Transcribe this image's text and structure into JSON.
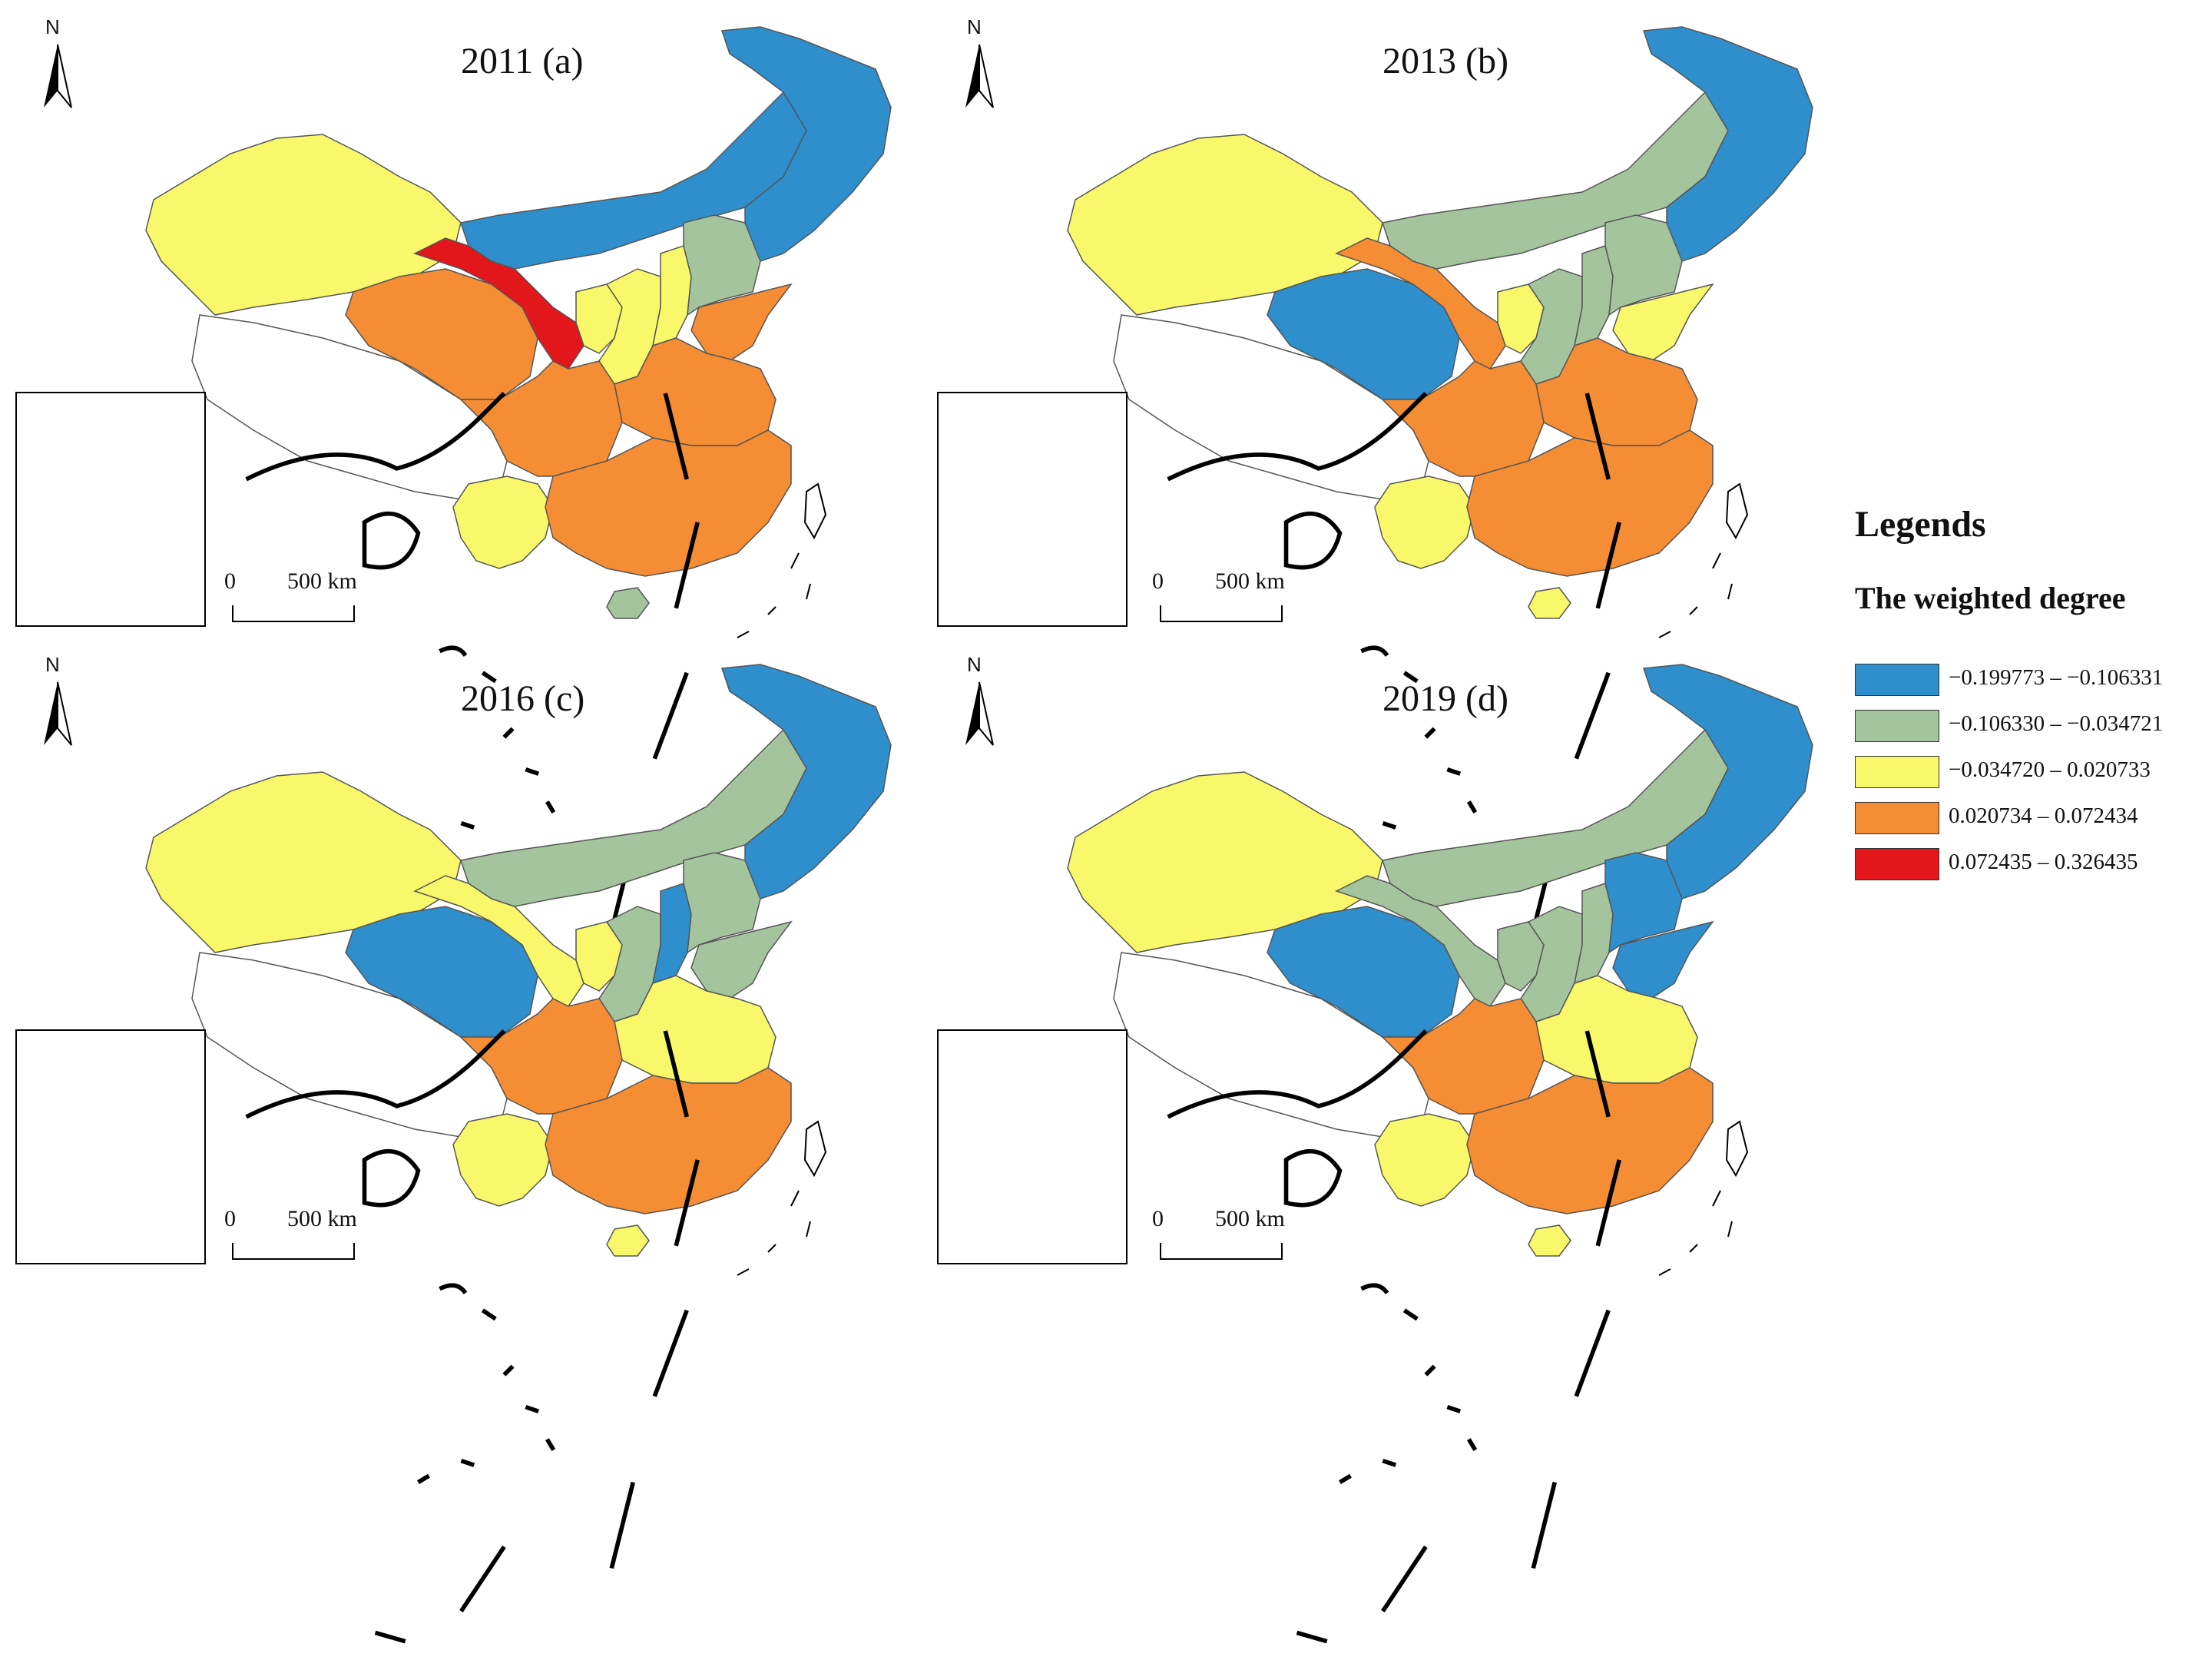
{
  "colors": {
    "blue": "#2e8fcc",
    "green": "#a4c49e",
    "yellow": "#f8f86a",
    "orange": "#f48d34",
    "red": "#e3161c",
    "white": "#ffffff"
  },
  "legend": {
    "title": "Legends",
    "subtitle": "The weighted degree",
    "items": [
      {
        "label": "−0.199773 – −0.106331",
        "color": "#2e8fcc"
      },
      {
        "label": "−0.106330 – −0.034721",
        "color": "#a4c49e"
      },
      {
        "label": "−0.034720 – 0.020733",
        "color": "#f8f86a"
      },
      {
        "label": "0.020734 – 0.072434",
        "color": "#f48d34"
      },
      {
        "label": "0.072435 – 0.326435",
        "color": "#e3161c"
      }
    ]
  },
  "north_label": "N",
  "scale": {
    "zero": "0",
    "distance": "500 km"
  },
  "panels": [
    {
      "title": "2011 (a)",
      "regions": {
        "xinjiang": "yellow",
        "tibet": "white",
        "qinghai": "orange",
        "gansu": "red",
        "inner_mongolia": "blue",
        "northeast": "blue",
        "ningxia": "yellow",
        "shaanxi": "yellow",
        "shanxi": "yellow",
        "north_china": "green",
        "shandong": "orange",
        "central": "orange",
        "sichuan": "orange",
        "yunnan": "yellow",
        "southeast": "orange",
        "hainan": "green"
      }
    },
    {
      "title": "2013 (b)",
      "regions": {
        "xinjiang": "yellow",
        "tibet": "white",
        "qinghai": "blue",
        "gansu": "orange",
        "inner_mongolia": "green",
        "northeast": "blue",
        "ningxia": "yellow",
        "shaanxi": "green",
        "shanxi": "green",
        "north_china": "green",
        "shandong": "yellow",
        "central": "orange",
        "sichuan": "orange",
        "yunnan": "yellow",
        "southeast": "orange",
        "hainan": "yellow"
      }
    },
    {
      "title": "2016 (c)",
      "regions": {
        "xinjiang": "yellow",
        "tibet": "white",
        "qinghai": "blue",
        "gansu": "yellow",
        "inner_mongolia": "green",
        "northeast": "blue",
        "ningxia": "yellow",
        "shaanxi": "green",
        "shanxi": "blue",
        "north_china": "green",
        "shandong": "green",
        "central": "yellow",
        "sichuan": "orange",
        "yunnan": "yellow",
        "southeast": "orange",
        "hainan": "yellow"
      }
    },
    {
      "title": "2019 (d)",
      "regions": {
        "xinjiang": "yellow",
        "tibet": "white",
        "qinghai": "blue",
        "gansu": "green",
        "inner_mongolia": "green",
        "northeast": "blue",
        "ningxia": "green",
        "shaanxi": "green",
        "shanxi": "green",
        "north_china": "blue",
        "shandong": "blue",
        "central": "yellow",
        "sichuan": "orange",
        "yunnan": "yellow",
        "southeast": "orange",
        "hainan": "yellow"
      }
    }
  ]
}
